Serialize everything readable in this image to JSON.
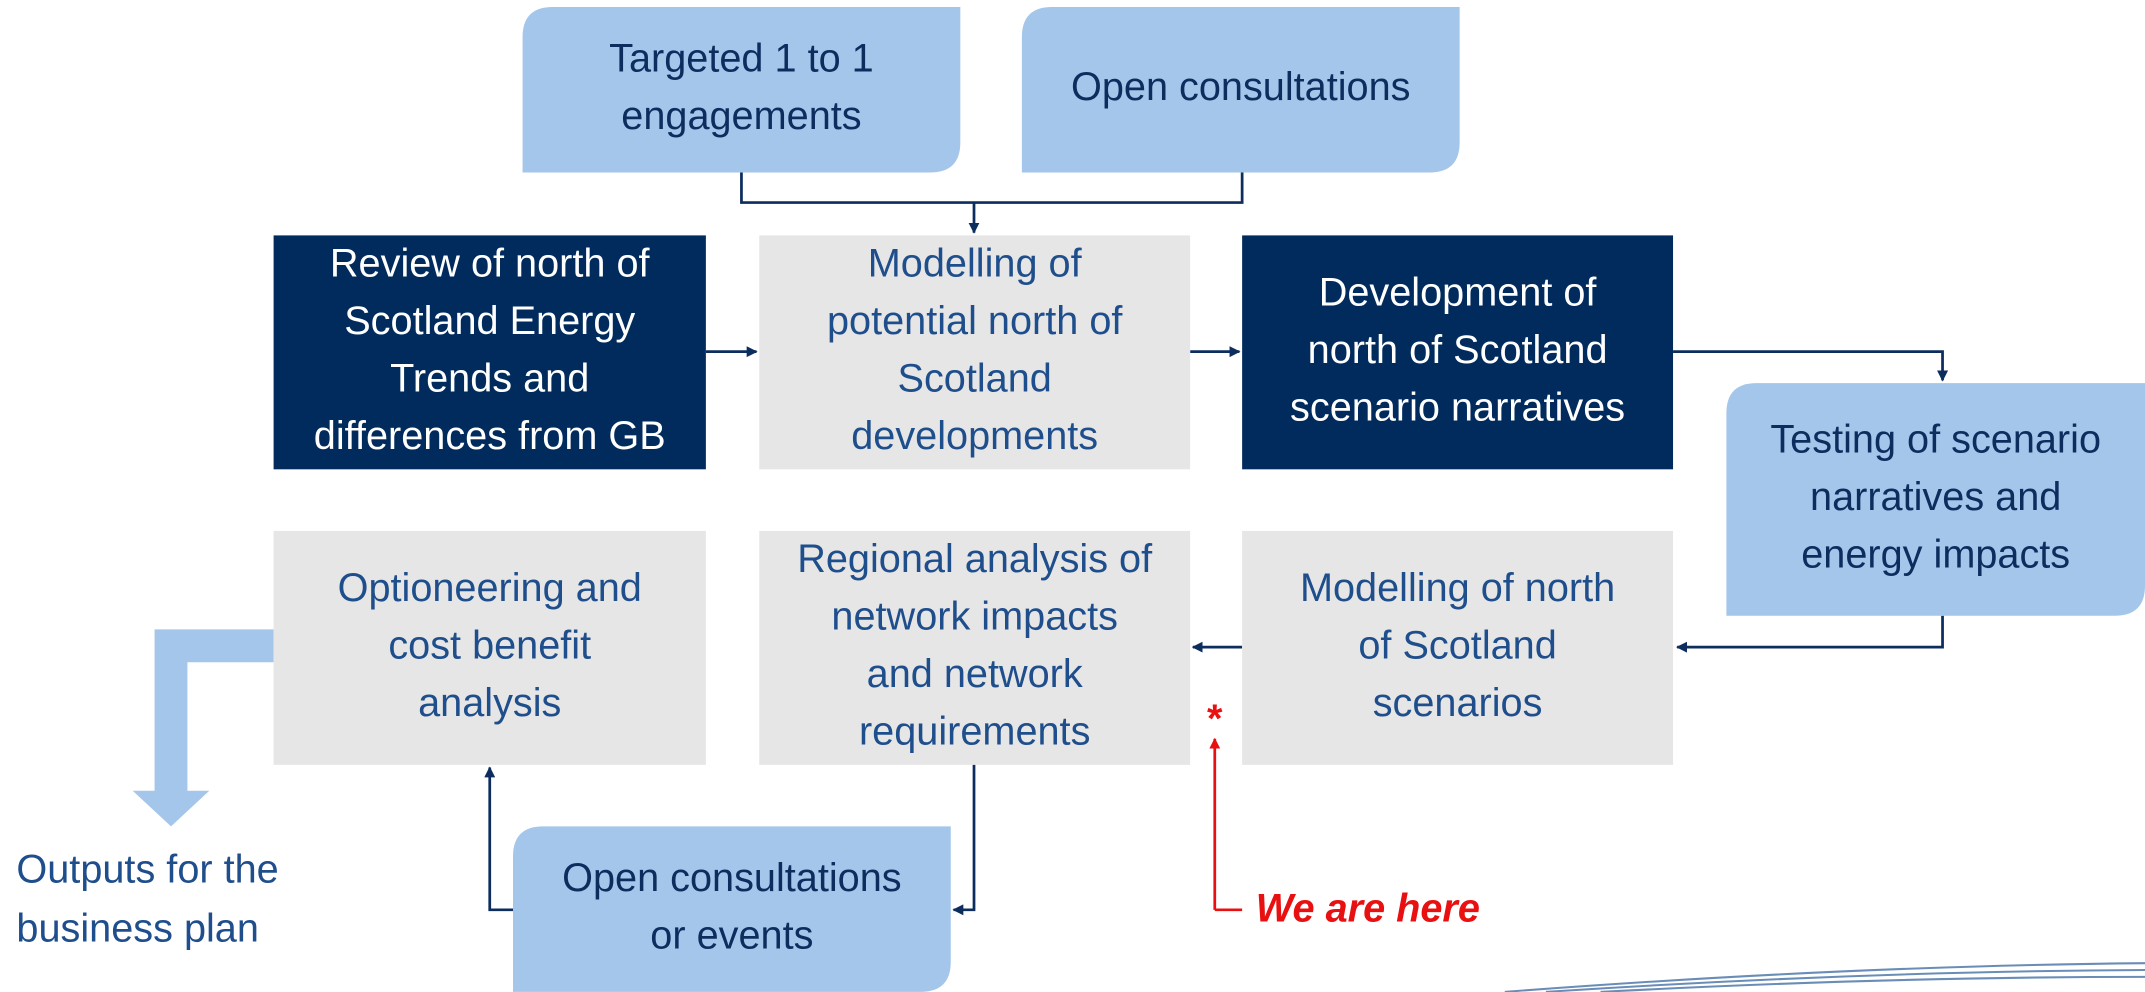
{
  "nodes": [
    {
      "lines": [
        "Targeted 1 to 1",
        "engagements"
      ],
      "style": "light"
    },
    {
      "lines": [
        "Open consultations"
      ],
      "style": "light"
    },
    {
      "lines": [
        "Review of north of",
        "Scotland Energy",
        "Trends and",
        "differences from GB"
      ],
      "style": "dark"
    },
    {
      "lines": [
        "Modelling of",
        "potential north of",
        "Scotland",
        "developments"
      ],
      "style": "gray"
    },
    {
      "lines": [
        "Development of",
        "north of Scotland",
        "scenario narratives"
      ],
      "style": "dark"
    },
    {
      "lines": [
        "Testing of scenario",
        "narratives and",
        "energy impacts"
      ],
      "style": "light"
    },
    {
      "lines": [
        "Optioneering and",
        "cost benefit",
        "analysis"
      ],
      "style": "gray"
    },
    {
      "lines": [
        "Regional analysis of",
        "network impacts",
        "and network",
        "requirements"
      ],
      "style": "gray"
    },
    {
      "lines": [
        "Modelling of north",
        "of Scotland",
        "scenarios"
      ],
      "style": "gray"
    },
    {
      "lines": [
        "Open consultations",
        "or events"
      ],
      "style": "light"
    }
  ],
  "outputs": [
    "Outputs for the",
    "business plan"
  ],
  "marker": "*",
  "status": "We are here"
}
